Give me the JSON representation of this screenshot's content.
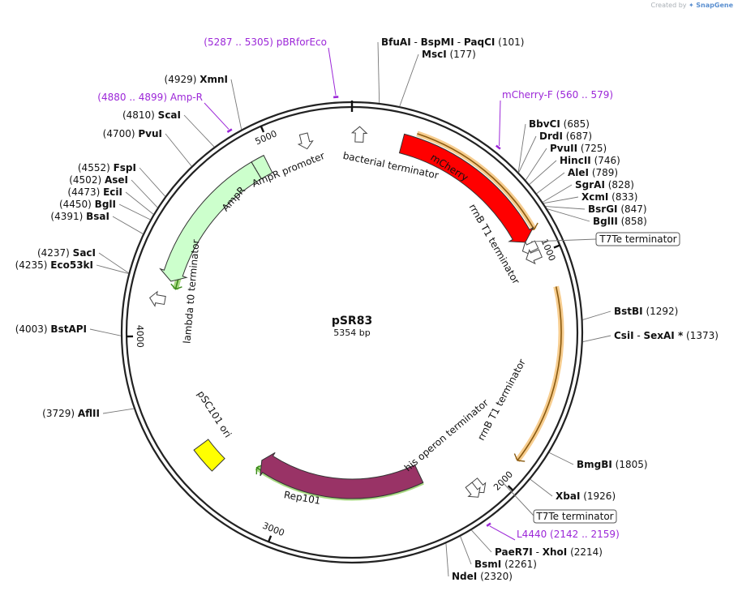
{
  "header": {
    "created_by": "Created by",
    "brand": "SnapGene"
  },
  "plasmid": {
    "name": "pSR83",
    "size_label": "5354 bp",
    "length": 5354
  },
  "ticks": [
    {
      "pos": 1000,
      "label": "1000"
    },
    {
      "pos": 2000,
      "label": "2000"
    },
    {
      "pos": 3000,
      "label": "3000"
    },
    {
      "pos": 4000,
      "label": "4000"
    },
    {
      "pos": 5000,
      "label": "5000"
    }
  ],
  "enzymes": [
    {
      "name": "BfuAI",
      "pos": 101,
      "pos_text": "(101)",
      "extra": [
        "BspMI",
        "PaqCI"
      ]
    },
    {
      "name": "MscI",
      "pos": 177,
      "pos_text": "(177)"
    },
    {
      "name": "BbvCI",
      "pos": 685,
      "pos_text": "(685)"
    },
    {
      "name": "DrdI",
      "pos": 687,
      "pos_text": "(687)"
    },
    {
      "name": "PvuII",
      "pos": 725,
      "pos_text": "(725)"
    },
    {
      "name": "HincII",
      "pos": 746,
      "pos_text": "(746)"
    },
    {
      "name": "AleI",
      "pos": 789,
      "pos_text": "(789)"
    },
    {
      "name": "SgrAI",
      "pos": 828,
      "pos_text": "(828)"
    },
    {
      "name": "XcmI",
      "pos": 833,
      "pos_text": "(833)"
    },
    {
      "name": "BsrGI",
      "pos": 847,
      "pos_text": "(847)"
    },
    {
      "name": "BglII",
      "pos": 858,
      "pos_text": "(858)"
    },
    {
      "name": "BstBI",
      "pos": 1292,
      "pos_text": "(1292)"
    },
    {
      "name": "CsiI",
      "pos": 1373,
      "pos_text": "(1373)",
      "extra": [
        "SexAI *"
      ]
    },
    {
      "name": "BmgBI",
      "pos": 1805,
      "pos_text": "(1805)"
    },
    {
      "name": "XbaI",
      "pos": 1926,
      "pos_text": "(1926)"
    },
    {
      "name": "PaeR7I",
      "pos": 2214,
      "pos_text": "(2214)",
      "extra": [
        "XhoI"
      ]
    },
    {
      "name": "BsmI",
      "pos": 2261,
      "pos_text": "(2261)"
    },
    {
      "name": "NdeI",
      "pos": 2320,
      "pos_text": "(2320)"
    },
    {
      "name": "AflII",
      "pos": 3729,
      "pos_text": "(3729)"
    },
    {
      "name": "BstAPI",
      "pos": 4003,
      "pos_text": "(4003)"
    },
    {
      "name": "Eco53kI",
      "pos": 4235,
      "pos_text": "(4235)"
    },
    {
      "name": "SacI",
      "pos": 4237,
      "pos_text": "(4237)"
    },
    {
      "name": "BsaI",
      "pos": 4391,
      "pos_text": "(4391)"
    },
    {
      "name": "BglI",
      "pos": 4450,
      "pos_text": "(4450)"
    },
    {
      "name": "EciI",
      "pos": 4473,
      "pos_text": "(4473)"
    },
    {
      "name": "AseI",
      "pos": 4502,
      "pos_text": "(4502)"
    },
    {
      "name": "FspI",
      "pos": 4552,
      "pos_text": "(4552)"
    },
    {
      "name": "PvuI",
      "pos": 4700,
      "pos_text": "(4700)"
    },
    {
      "name": "ScaI",
      "pos": 4810,
      "pos_text": "(4810)"
    },
    {
      "name": "XmnI",
      "pos": 4929,
      "pos_text": "(4929)"
    }
  ],
  "primers": [
    {
      "name": "pBRforEco",
      "range_text": "(5287 .. 5305)",
      "start": 5287,
      "end": 5305
    },
    {
      "name": "Amp-R",
      "range_text": "(4880 .. 4899)",
      "start": 4880,
      "end": 4899
    },
    {
      "name": "mCherry-F",
      "range_text": "(560 .. 579)",
      "start": 560,
      "end": 579
    },
    {
      "name": "L4440",
      "range_text": "(2142 .. 2159)",
      "start": 2142,
      "end": 2159
    }
  ],
  "features": [
    {
      "name": "mCherry",
      "start": 220,
      "end": 930,
      "color": "#ff0000",
      "strand": 1,
      "text_color": "#ffffff"
    },
    {
      "name": "Rep101",
      "start": 2300,
      "end": 3200,
      "color": "#993366",
      "strand": 1,
      "text_color": "#ffffff"
    },
    {
      "name": "AmpR",
      "start": 4250,
      "end": 4900,
      "color": "#ccffcc",
      "strand": -1,
      "text_color": "#111111"
    },
    {
      "name": "AmpR promoter",
      "start": 4900,
      "end": 4960,
      "color": "#ccffcc",
      "strand": -1,
      "text_color": "#111111"
    },
    {
      "name": "pSC101 ori",
      "start": 3350,
      "end": 3470,
      "color": "#ffff00",
      "strand": 0,
      "text_color": "#111111"
    }
  ],
  "orange_arcs": [
    {
      "start": 270,
      "end": 900,
      "color": "#f4b860"
    },
    {
      "start": 1150,
      "end": 1900,
      "color": "#f4b860"
    }
  ],
  "green_arcs": [
    {
      "start": 2300,
      "end": 3200,
      "color": "#8ccc5a"
    },
    {
      "start": 4220,
      "end": 4960,
      "color": "#8ccc5a"
    }
  ],
  "terminators": [
    {
      "name": "bacterial terminator"
    },
    {
      "name": "rrnB T1 terminator"
    },
    {
      "name": "T7Te terminator"
    },
    {
      "name": "lambda t0 terminator"
    },
    {
      "name": "rrnB T1 terminator"
    },
    {
      "name": "his operon terminator"
    },
    {
      "name": "T7Te terminator"
    }
  ],
  "colors": {
    "backbone": "#222222",
    "primer": "#9c27d8",
    "leader": "#777777",
    "green_edge": "#3a8a1a",
    "orange_edge": "#8a5a10"
  }
}
